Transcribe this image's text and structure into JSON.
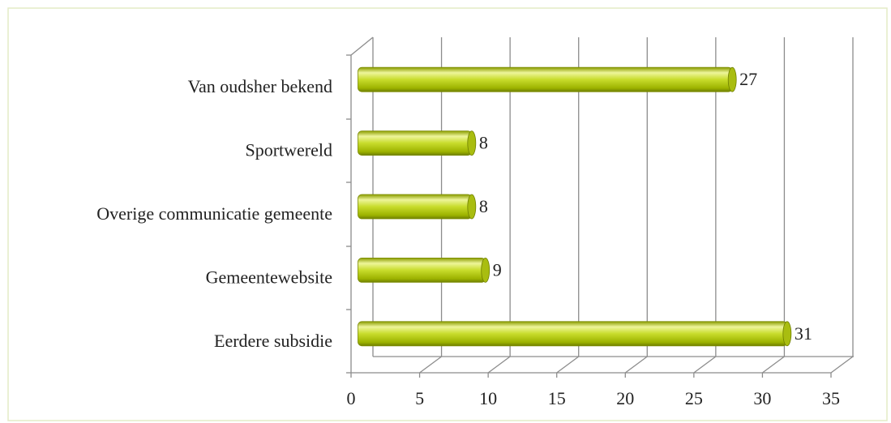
{
  "chart_data": {
    "type": "bar",
    "orientation": "horizontal",
    "categories": [
      "Van oudsher bekend",
      "Sportwereld",
      "Overige communicatie gemeente",
      "Gemeentewebsite",
      "Eerdere subsidie"
    ],
    "values": [
      27,
      8,
      8,
      9,
      31
    ],
    "color": "#c5d92b",
    "xlim": [
      0,
      35
    ],
    "xticks": [
      0,
      5,
      10,
      15,
      20,
      25,
      30,
      35
    ],
    "grid": true
  }
}
